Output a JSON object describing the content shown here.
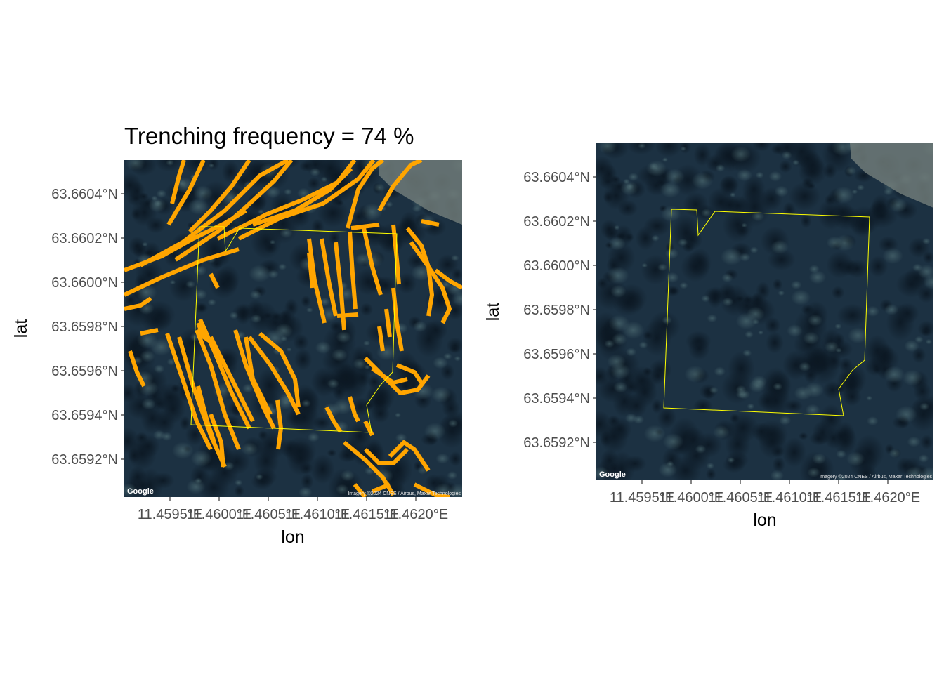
{
  "left_panel": {
    "title": "Trenching frequency =  74 %",
    "xlabel": "lon",
    "ylabel": "lat",
    "lat_ticks": [
      "63.6604°N",
      "63.6602°N",
      "63.6600°N",
      "63.6598°N",
      "63.6596°N",
      "63.6594°N",
      "63.6592°N"
    ],
    "lon_ticks": [
      "11.4595°E",
      "11.4600°E",
      "11.4605°E",
      "11.4610°E",
      "11.4615°E",
      "11.4620°E"
    ],
    "basemap_logo": "Google",
    "attribution": "Imagery ©2024 CNES / Airbus, Maxar Technologies",
    "trench_color": "#FFA500",
    "boundary_color": "#FFFF00"
  },
  "right_panel": {
    "xlabel": "lon",
    "ylabel": "lat",
    "lat_ticks": [
      "63.6604°N",
      "63.6602°N",
      "63.6600°N",
      "63.6598°N",
      "63.6596°N",
      "63.6594°N",
      "63.6592°N"
    ],
    "lon_ticks": [
      "11.4595°E",
      "11.4600°E",
      "11.4605°E",
      "11.4610°E",
      "11.4615°E",
      "11.4620°E"
    ],
    "basemap_logo": "Google",
    "attribution": "Imagery ©2024 CNES / Airbus, Maxar Technologies",
    "boundary_color": "#FFFF00"
  }
}
